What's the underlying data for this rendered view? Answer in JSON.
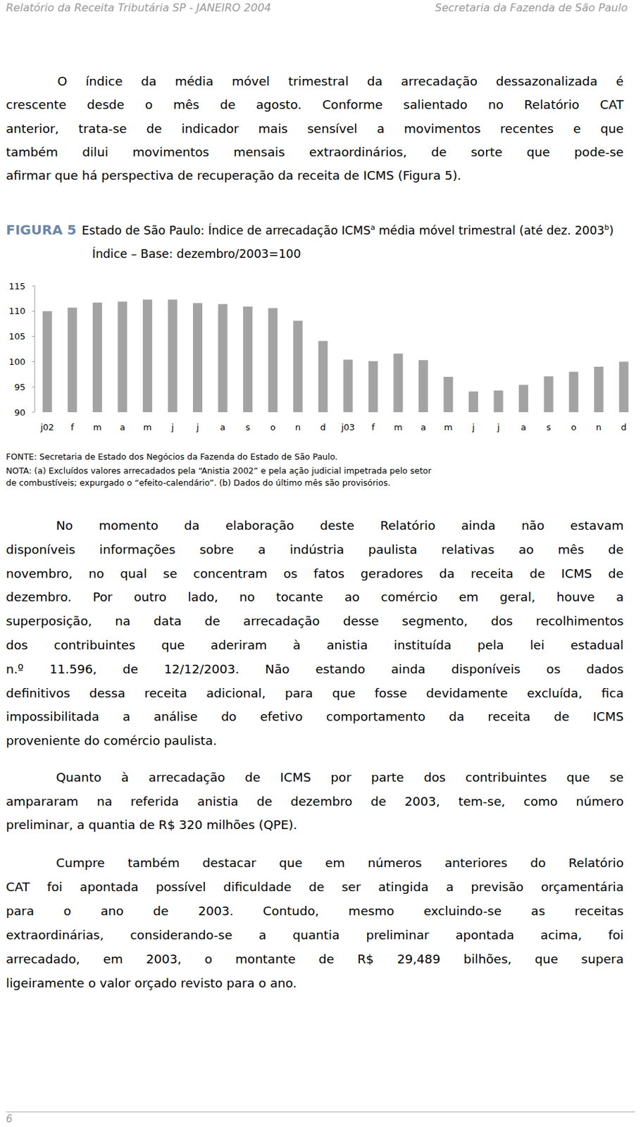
{
  "header": {
    "left": "Relatório da Receita Tributária SP - JANEIRO 2004",
    "right": "Secretaria da Fazenda de São Paulo"
  },
  "paragraphs": [
    {
      "lines": [
        "O índice da média móvel trimestral da arrecadação dessazonalizada é",
        "crescente desde o mês de agosto. Conforme salientado no Relatório CAT",
        "anterior, trata-se de indicador mais sensível a movimentos recentes e que",
        "também dilui movimentos mensais extraordinários, de sorte que pode-se",
        "afirmar que há perspectiva de recuperação da receita de ICMS (Figura 5)."
      ]
    },
    {
      "lines": [
        "No momento da elaboração deste Relatório ainda não estavam",
        "disponíveis informações sobre a indústria paulista relativas ao mês de",
        "novembro, no qual se concentram os fatos geradores da receita de ICMS de",
        "dezembro. Por outro lado, no tocante ao comércio em geral, houve a",
        "superposição, na data de arrecadação desse segmento, dos recolhimentos",
        "dos contribuintes que aderiram à anistia instituída pela lei estadual",
        "n.º 11.596, de 12/12/2003. Não estando ainda disponíveis os dados",
        "definitivos dessa receita adicional, para que fosse devidamente excluída, fica",
        "impossibilitada a análise do efetivo comportamento da receita de ICMS",
        "proveniente do comércio paulista."
      ]
    },
    {
      "lines": [
        "Quanto à arrecadação de ICMS por parte dos contribuintes que se",
        "ampararam na referida anistia de dezembro de 2003, tem-se, como número",
        "preliminar, a quantia de R$ 320 milhões (QPE)."
      ]
    },
    {
      "lines": [
        "Cumpre também destacar que em números anteriores do Relatório",
        "CAT foi apontada possível dificuldade de ser atingida a previsão orçamentária",
        "para o ano de 2003. Contudo, mesmo excluindo-se as receitas",
        "extraordinárias, considerando-se a quantia preliminar apontada acima, foi",
        "arrecadado, em 2003, o montante de R$ 29,489 bilhões, que supera",
        "ligeiramente o valor orçado revisto para o ano."
      ]
    }
  ],
  "figure": {
    "label": "FIGURA 5",
    "title_parts": [
      {
        "text": "Estado de São Paulo: Índice de arrecadação ICMS",
        "sup": false
      },
      {
        "text": "a",
        "sup": true
      },
      {
        "text": " média móvel trimestral (até dez. 2003",
        "sup": false
      },
      {
        "text": "b",
        "sup": true
      },
      {
        "text": ")",
        "sup": false
      }
    ],
    "source": "FONTE: Secretaria de Estado dos Negócios da Fazenda do Estado de São Paulo.",
    "notes": [
      "NOTA: (a) Excluídos valores arrecadados pela “Anistia 2002” e pela ação judicial impetrada pelo setor",
      "de combustíveis; expurgado o “efeito-calendário”. (b) Dados do último mês são provisórios."
    ]
  },
  "chart_data": {
    "type": "bar",
    "subtitle": "Índice – Base: dezembro/2003=100",
    "categories": [
      "j02",
      "f",
      "m",
      "a",
      "m",
      "j",
      "j",
      "a",
      "s",
      "o",
      "n",
      "d",
      "j03",
      "f",
      "m",
      "a",
      "m",
      "j",
      "j",
      "a",
      "s",
      "o",
      "n",
      "d"
    ],
    "values": [
      110.0,
      110.7,
      111.7,
      111.9,
      112.3,
      112.3,
      111.6,
      111.4,
      110.9,
      110.6,
      108.1,
      104.1,
      100.4,
      100.1,
      101.6,
      100.3,
      97.0,
      94.1,
      94.3,
      95.4,
      97.1,
      98.0,
      99.0,
      100.0
    ],
    "color": "#a3a3a3",
    "ylim": [
      90,
      115
    ],
    "yticks": [
      90,
      95,
      100,
      105,
      110,
      115
    ],
    "grid": false
  },
  "footer": {
    "page": "6"
  }
}
